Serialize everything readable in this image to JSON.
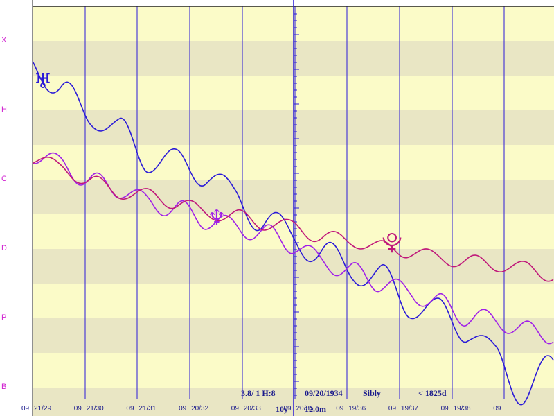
{
  "chart_data": {
    "type": "line",
    "y_labels": [
      "X",
      "H",
      "C",
      "D",
      "P",
      "B"
    ],
    "x_tick_labels": [
      {
        "year_label": "09",
        "label": "21/29"
      },
      {
        "year_label": "09",
        "label": "21/30"
      },
      {
        "year_label": "09",
        "label": "21/31"
      },
      {
        "year_label": "09",
        "label": "20/32"
      },
      {
        "year_label": "09",
        "label": "20/33"
      },
      {
        "year_label": "09",
        "label": "20/35"
      },
      {
        "year_label": "09",
        "label": "19/36"
      },
      {
        "year_label": "09",
        "label": "19/37"
      },
      {
        "year_label": "09",
        "label": "19/38"
      },
      {
        "year_label": "09",
        "label": ""
      }
    ],
    "info": {
      "ratio": "3.8/ 1 H:8",
      "date": "09/20/1934",
      "chart_name": "Sibly",
      "span": "< 1825d",
      "range": "10y",
      "duration": "12.0m"
    },
    "series": [
      {
        "glyph": "♅",
        "color": "#2a1ad8",
        "values": [
          4.75,
          4.2,
          3.95,
          3.65,
          3.3,
          3.2,
          3.1,
          2.7,
          2.4,
          2.15,
          1.9,
          1.7,
          1.55,
          1.2,
          1.05,
          0.85,
          0.4,
          -0.1,
          0.3
        ]
      },
      {
        "glyph": "♆",
        "color": "#a020e8",
        "values": [
          3.35,
          3.2,
          2.95,
          2.85,
          2.65,
          2.55,
          2.4,
          2.3,
          2.2,
          2.05,
          1.8,
          1.65,
          1.5,
          1.35,
          1.2,
          1.0,
          0.95,
          0.8,
          0.75
        ]
      },
      {
        "glyph": "⯓",
        "color": "#c0187a",
        "values": [
          3.3,
          3.15,
          2.95,
          2.8,
          2.75,
          2.65,
          2.5,
          2.45,
          2.35,
          2.3,
          2.15,
          2.1,
          2.0,
          1.95,
          1.85,
          1.8,
          1.75,
          1.7,
          1.6
        ]
      }
    ]
  }
}
